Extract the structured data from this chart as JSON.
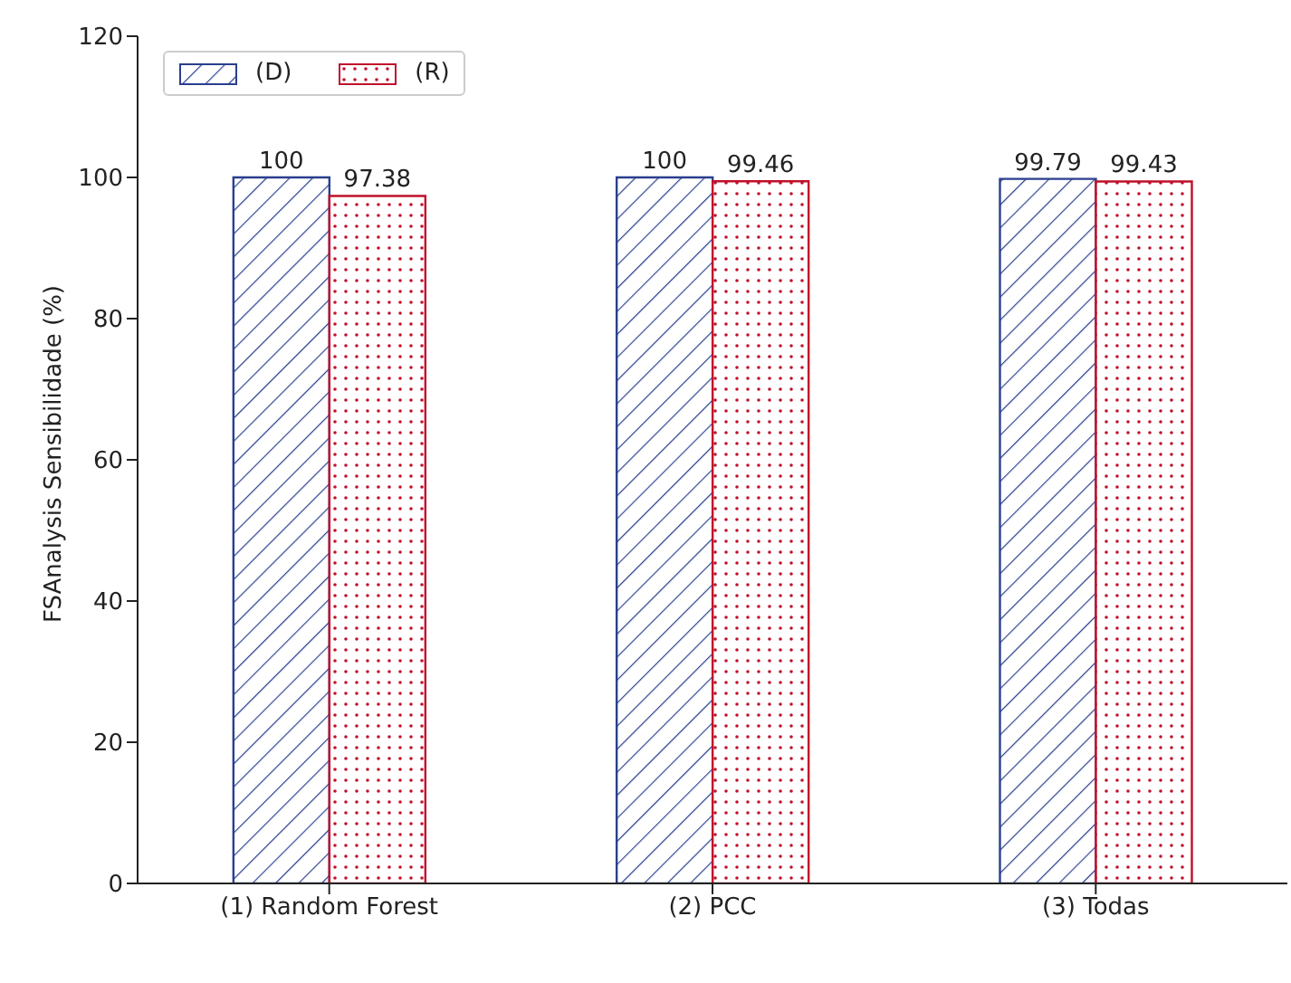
{
  "chart_data": {
    "type": "bar",
    "ylabel": "FSAnalysis Sensibilidade (%)",
    "categories": [
      "(1) Random Forest",
      "(2) PCC",
      "(3) Todas"
    ],
    "series": [
      {
        "name": "(D)",
        "color": "#2a3f8f",
        "values": [
          100,
          100,
          99.79
        ]
      },
      {
        "name": "(R)",
        "color": "#c0102a",
        "values": [
          97.38,
          99.46,
          99.43
        ]
      }
    ],
    "ylim": [
      0,
      120
    ],
    "yticks": [
      0,
      20,
      40,
      60,
      80,
      100,
      120
    ],
    "data_labels": true,
    "legend": "top left",
    "grid": false
  }
}
